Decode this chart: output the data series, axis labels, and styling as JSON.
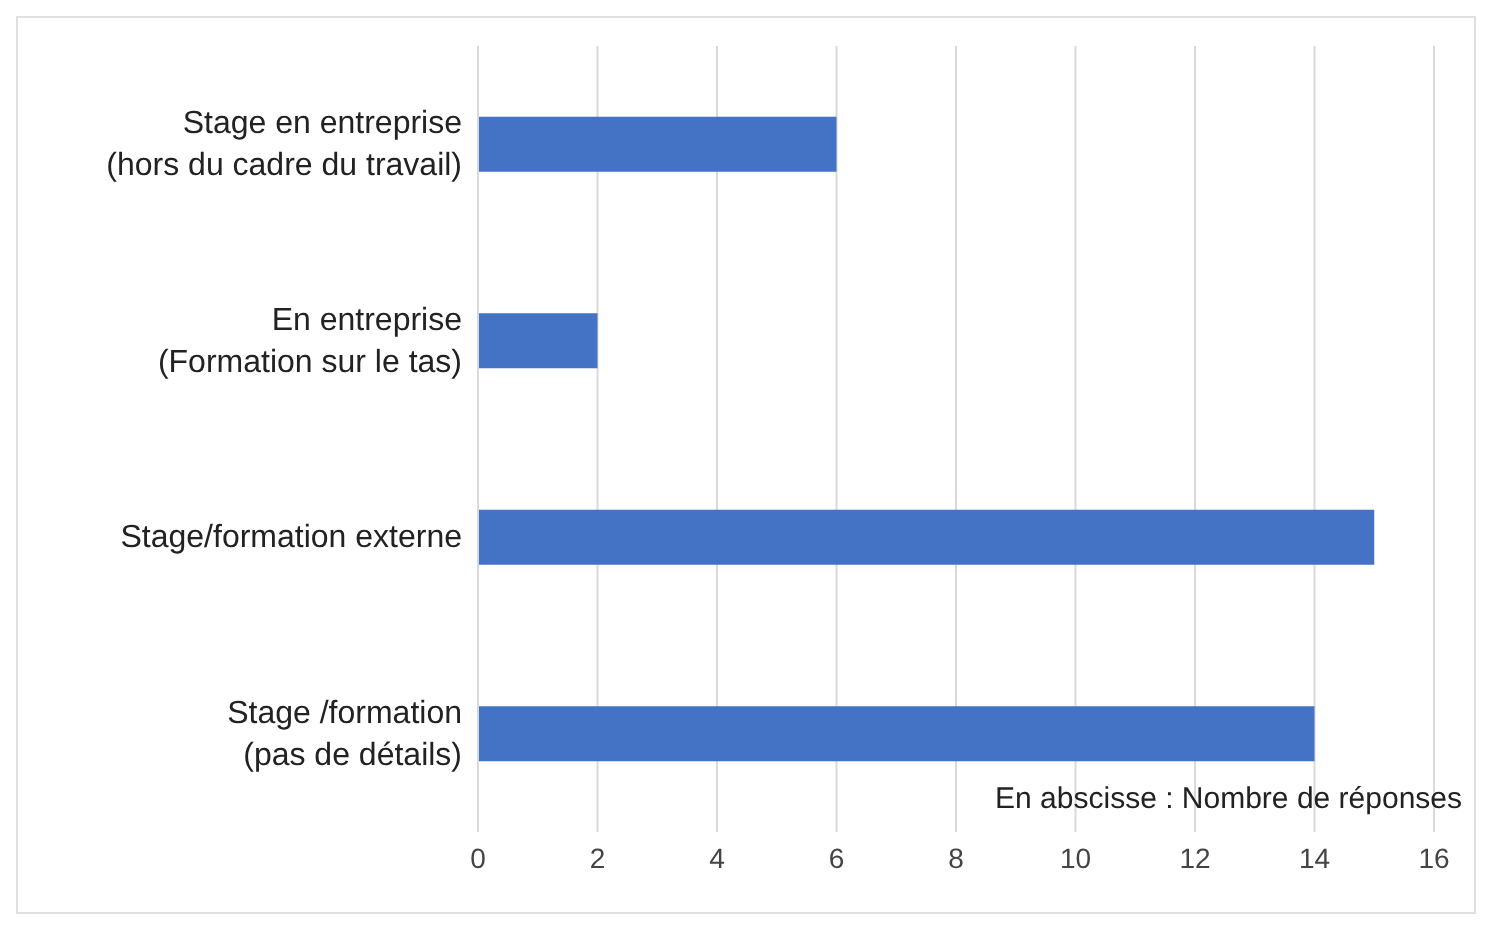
{
  "chart_data": {
    "type": "bar",
    "orientation": "horizontal",
    "categories": [
      "Stage en entreprise\n(hors du cadre du travail)",
      "En entreprise\n(Formation sur le tas)",
      "Stage/formation externe",
      "Stage /formation\n(pas de détails)"
    ],
    "values": [
      6,
      2,
      15,
      14
    ],
    "color": "#4472c4",
    "xlim": [
      0,
      16
    ],
    "xticks": [
      0,
      2,
      4,
      6,
      8,
      10,
      12,
      14,
      16
    ],
    "grid": "x",
    "xlabel": "En abscisse : Nombre de réponses"
  }
}
